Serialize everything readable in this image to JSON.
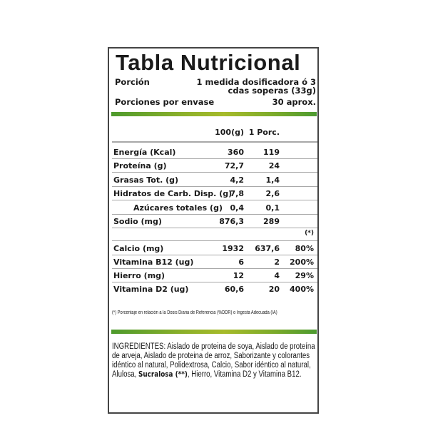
{
  "title": "Tabla Nutricional",
  "portion": {
    "label": "Porción",
    "value_line1": "1 medida dosificadora ó 3",
    "value_line2": "cdas soperas (33g)"
  },
  "servings": {
    "label": "Porciones por envase",
    "value": "30 aprox."
  },
  "columns": {
    "per100": "100(g)",
    "perServing": "1 Porc.",
    "pct": "(*)"
  },
  "colors": {
    "bar_green": "#4d9a2c",
    "bar_yellow": "#a6bb2a",
    "border": "#444444"
  },
  "rows": [
    {
      "name": "Energía (Kcal)",
      "per100": "360",
      "perServing": "119"
    },
    {
      "name": "Proteína (g)",
      "per100": "72,7",
      "perServing": "24"
    },
    {
      "name": "Grasas Tot. (g)",
      "per100": "4,2",
      "perServing": "1,4"
    },
    {
      "name": "Hidratos de Carb. Disp. (g)",
      "per100": "7,8",
      "perServing": "2,6"
    },
    {
      "name": "Azúcares totales (g)",
      "per100": "0,4",
      "perServing": "0,1"
    },
    {
      "name": "Sodio (mg)",
      "per100": "876,3",
      "perServing": "289"
    }
  ],
  "micros": [
    {
      "name": "Calcio (mg)",
      "per100": "1932",
      "perServing": "637,6",
      "pct": "80%"
    },
    {
      "name": "Vitamina B12 (ug)",
      "per100": "6",
      "perServing": "2",
      "pct": "200%"
    },
    {
      "name": "Hierro (mg)",
      "per100": "12",
      "perServing": "4",
      "pct": "29%"
    },
    {
      "name": "Vitamina D2 (ug)",
      "per100": "60,6",
      "perServing": "20",
      "pct": "400%"
    }
  ],
  "footnote": "(*) Porcentaje en relación a la Dosis Diaria de Referencia (%DDR) o Ingesta Adecuada (IA)",
  "ingredients": {
    "text_before": "INGREDIENTES: Aislado de proteina de soya, Aislado de proteína de arveja, Aislado de proteina de arroz, Saborizante y colorantes idéntico al natural, Polidextrosa, Calcio, Sabor idéntico al natural, Alulosa, ",
    "bold": "Sucralosa (**)",
    "text_after": ", Hierro, Vitamina D2 y Vitamina B12."
  }
}
